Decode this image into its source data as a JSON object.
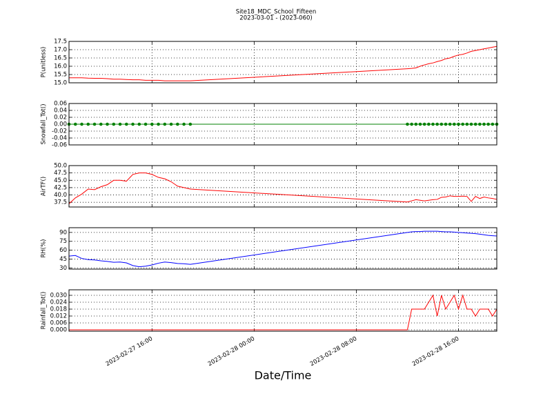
{
  "title": "Site18_MDC_School_Fifteen",
  "subtitle": "2023-03-01 - (2023-060)",
  "xlabel": "Date/Time",
  "chart_data": [
    {
      "type": "line",
      "ylabel": "P(unitless)",
      "color": "#ff0000",
      "grid": true,
      "x": [
        "2023-02-27 09:30",
        "2023-02-27 10:00",
        "2023-02-27 10:30",
        "2023-02-27 11:00",
        "2023-02-27 11:30",
        "2023-02-27 12:00",
        "2023-02-27 12:30",
        "2023-02-27 13:00",
        "2023-02-27 13:30",
        "2023-02-27 14:00",
        "2023-02-27 14:30",
        "2023-02-27 15:00",
        "2023-02-27 15:30",
        "2023-02-27 16:00",
        "2023-02-27 16:30",
        "2023-02-27 17:00",
        "2023-02-27 17:30",
        "2023-02-27 18:00",
        "2023-02-27 18:30",
        "2023-02-27 19:00",
        "2023-02-28 12:00",
        "2023-02-28 12:20",
        "2023-02-28 12:40",
        "2023-02-28 13:00",
        "2023-02-28 13:20",
        "2023-02-28 13:40",
        "2023-02-28 14:00",
        "2023-02-28 14:20",
        "2023-02-28 14:40",
        "2023-02-28 15:00",
        "2023-02-28 15:20",
        "2023-02-28 15:40",
        "2023-02-28 16:00",
        "2023-02-28 16:20",
        "2023-02-28 16:40",
        "2023-02-28 17:00",
        "2023-02-28 17:20",
        "2023-02-28 17:40",
        "2023-02-28 18:00",
        "2023-02-28 18:20",
        "2023-02-28 18:40",
        "2023-02-28 19:00"
      ],
      "values": [
        15.3,
        15.3,
        15.3,
        15.28,
        15.27,
        15.27,
        15.25,
        15.22,
        15.22,
        15.2,
        15.18,
        15.18,
        15.15,
        15.15,
        15.15,
        15.12,
        15.12,
        15.12,
        15.12,
        15.12,
        15.85,
        15.87,
        15.9,
        16.0,
        16.08,
        16.15,
        16.2,
        16.28,
        16.35,
        16.45,
        16.5,
        16.6,
        16.68,
        16.72,
        16.8,
        16.9,
        16.95,
        17.0,
        17.05,
        17.1,
        17.15,
        17.2
      ],
      "xlim": [
        "2023-02-27 09:30",
        "2023-02-28 19:00"
      ],
      "xticks": [
        "2023-02-27 16:00",
        "2023-02-28 00:00",
        "2023-02-28 08:00",
        "2023-02-28 16:00"
      ],
      "ylim": [
        15.0,
        17.5
      ],
      "yticks": [
        {
          "value": 15,
          "label": "15.0"
        },
        15.5,
        {
          "value": 16,
          "label": "16.0"
        },
        16.5,
        {
          "value": 17,
          "label": "17.0"
        },
        17.5
      ]
    },
    {
      "type": "line",
      "ylabel": "Snowfall_Tot()",
      "color": "#008000",
      "marker": true,
      "grid": true,
      "x": [
        "2023-02-27 09:30",
        "2023-02-27 10:00",
        "2023-02-27 10:30",
        "2023-02-27 11:00",
        "2023-02-27 11:30",
        "2023-02-27 12:00",
        "2023-02-27 12:30",
        "2023-02-27 13:00",
        "2023-02-27 13:30",
        "2023-02-27 14:00",
        "2023-02-27 14:30",
        "2023-02-27 15:00",
        "2023-02-27 15:30",
        "2023-02-27 16:00",
        "2023-02-27 16:30",
        "2023-02-27 17:00",
        "2023-02-27 17:30",
        "2023-02-27 18:00",
        "2023-02-27 18:30",
        "2023-02-27 19:00",
        "2023-02-28 12:00",
        "2023-02-28 12:20",
        "2023-02-28 12:40",
        "2023-02-28 13:00",
        "2023-02-28 13:20",
        "2023-02-28 13:40",
        "2023-02-28 14:00",
        "2023-02-28 14:20",
        "2023-02-28 14:40",
        "2023-02-28 15:00",
        "2023-02-28 15:20",
        "2023-02-28 15:40",
        "2023-02-28 16:00",
        "2023-02-28 16:20",
        "2023-02-28 16:40",
        "2023-02-28 17:00",
        "2023-02-28 17:20",
        "2023-02-28 17:40",
        "2023-02-28 18:00",
        "2023-02-28 18:20",
        "2023-02-28 18:40",
        "2023-02-28 19:00"
      ],
      "values": [
        0,
        0,
        0,
        0,
        0,
        0,
        0,
        0,
        0,
        0,
        0,
        0,
        0,
        0,
        0,
        0,
        0,
        0,
        0,
        0,
        0,
        0,
        0,
        0,
        0,
        0,
        0,
        0,
        0,
        0,
        0,
        0,
        0,
        0,
        0,
        0,
        0,
        0,
        0,
        0,
        0,
        0
      ],
      "xlim": [
        "2023-02-27 09:30",
        "2023-02-28 19:00"
      ],
      "xticks": [
        "2023-02-27 16:00",
        "2023-02-28 00:00",
        "2023-02-28 08:00",
        "2023-02-28 16:00"
      ],
      "ylim": [
        -0.06,
        0.06
      ],
      "yticks": [
        -0.06,
        -0.04,
        -0.02,
        {
          "value": 0,
          "label": "0.00"
        },
        0.02,
        0.04,
        0.06
      ]
    },
    {
      "type": "line",
      "ylabel": "AirTF()",
      "color": "#ff0000",
      "grid": true,
      "x": [
        "2023-02-27 09:30",
        "2023-02-27 10:00",
        "2023-02-27 10:30",
        "2023-02-27 11:00",
        "2023-02-27 11:30",
        "2023-02-27 12:00",
        "2023-02-27 12:30",
        "2023-02-27 13:00",
        "2023-02-27 13:30",
        "2023-02-27 14:00",
        "2023-02-27 14:30",
        "2023-02-27 15:00",
        "2023-02-27 15:30",
        "2023-02-27 16:00",
        "2023-02-27 16:30",
        "2023-02-27 17:00",
        "2023-02-27 17:30",
        "2023-02-27 18:00",
        "2023-02-27 18:30",
        "2023-02-27 19:00",
        "2023-02-28 12:00",
        "2023-02-28 12:20",
        "2023-02-28 12:40",
        "2023-02-28 13:00",
        "2023-02-28 13:20",
        "2023-02-28 13:40",
        "2023-02-28 14:00",
        "2023-02-28 14:20",
        "2023-02-28 14:40",
        "2023-02-28 15:00",
        "2023-02-28 15:20",
        "2023-02-28 15:40",
        "2023-02-28 16:00",
        "2023-02-28 16:20",
        "2023-02-28 16:40",
        "2023-02-28 17:00",
        "2023-02-28 17:20",
        "2023-02-28 17:40",
        "2023-02-28 18:00",
        "2023-02-28 18:20",
        "2023-02-28 18:40",
        "2023-02-28 19:00"
      ],
      "values": [
        37,
        39,
        40.3,
        42,
        41.8,
        42.8,
        43.5,
        45,
        45,
        44.7,
        47,
        47.5,
        47.5,
        47,
        46,
        45.5,
        44.5,
        43,
        42.5,
        42,
        37.6,
        38,
        38.4,
        38.2,
        38,
        38.2,
        38.4,
        38.5,
        39.2,
        39.3,
        39.7,
        39.5,
        39.5,
        39.6,
        39.5,
        37.8,
        39.5,
        38.8,
        39.3,
        39,
        38.8,
        38.5
      ],
      "xlim": [
        "2023-02-27 09:30",
        "2023-02-28 19:00"
      ],
      "xticks": [
        "2023-02-27 16:00",
        "2023-02-28 00:00",
        "2023-02-28 08:00",
        "2023-02-28 16:00"
      ],
      "ylim": [
        35.9,
        50
      ],
      "yticks": [
        37.5,
        {
          "value": 40,
          "label": "40.0"
        },
        42.5,
        {
          "value": 45,
          "label": "45.0"
        },
        47.5,
        {
          "value": 50,
          "label": "50.0"
        }
      ]
    },
    {
      "type": "line",
      "ylabel": "RH(%)",
      "color": "#0000ff",
      "grid": true,
      "x": [
        "2023-02-27 09:30",
        "2023-02-27 10:00",
        "2023-02-27 10:30",
        "2023-02-27 11:00",
        "2023-02-27 11:30",
        "2023-02-27 12:00",
        "2023-02-27 12:30",
        "2023-02-27 13:00",
        "2023-02-27 13:30",
        "2023-02-27 14:00",
        "2023-02-27 14:30",
        "2023-02-27 15:00",
        "2023-02-27 15:30",
        "2023-02-27 16:00",
        "2023-02-27 16:30",
        "2023-02-27 17:00",
        "2023-02-27 17:30",
        "2023-02-27 18:00",
        "2023-02-27 18:30",
        "2023-02-27 19:00",
        "2023-02-28 12:00",
        "2023-02-28 12:20",
        "2023-02-28 12:40",
        "2023-02-28 13:00",
        "2023-02-28 13:20",
        "2023-02-28 13:40",
        "2023-02-28 14:00",
        "2023-02-28 14:20",
        "2023-02-28 14:40",
        "2023-02-28 15:00",
        "2023-02-28 15:20",
        "2023-02-28 15:40",
        "2023-02-28 16:00",
        "2023-02-28 16:20",
        "2023-02-28 16:40",
        "2023-02-28 17:00",
        "2023-02-28 17:20",
        "2023-02-28 17:40",
        "2023-02-28 18:00",
        "2023-02-28 18:20",
        "2023-02-28 18:40",
        "2023-02-28 19:00"
      ],
      "values": [
        50,
        51,
        46,
        44,
        43.5,
        42,
        41,
        39.5,
        40,
        38.5,
        34,
        32,
        33,
        35,
        38,
        40,
        39,
        37.5,
        37,
        36,
        90,
        91,
        91.5,
        91.5,
        92,
        92,
        92,
        92,
        91.5,
        91,
        91,
        90.5,
        90,
        89.5,
        89,
        88.5,
        88,
        87,
        86,
        85,
        84.5,
        84
      ],
      "xlim": [
        "2023-02-27 09:30",
        "2023-02-28 19:00"
      ],
      "xticks": [
        "2023-02-27 16:00",
        "2023-02-28 00:00",
        "2023-02-28 08:00",
        "2023-02-28 16:00"
      ],
      "ylim": [
        28,
        98
      ],
      "yticks": [
        30,
        45,
        60,
        75,
        90
      ]
    },
    {
      "type": "line",
      "ylabel": "Rainfall_Tot()",
      "color": "#ff0000",
      "grid": true,
      "x": [
        "2023-02-27 09:30",
        "2023-02-27 10:00",
        "2023-02-27 10:30",
        "2023-02-27 11:00",
        "2023-02-27 11:30",
        "2023-02-27 12:00",
        "2023-02-27 12:30",
        "2023-02-27 13:00",
        "2023-02-27 13:30",
        "2023-02-27 14:00",
        "2023-02-27 14:30",
        "2023-02-27 15:00",
        "2023-02-27 15:30",
        "2023-02-27 16:00",
        "2023-02-27 16:30",
        "2023-02-27 17:00",
        "2023-02-27 17:30",
        "2023-02-27 18:00",
        "2023-02-27 18:30",
        "2023-02-27 19:00",
        "2023-02-28 12:00",
        "2023-02-28 12:20",
        "2023-02-28 12:40",
        "2023-02-28 13:00",
        "2023-02-28 13:20",
        "2023-02-28 13:40",
        "2023-02-28 14:00",
        "2023-02-28 14:20",
        "2023-02-28 14:40",
        "2023-02-28 15:00",
        "2023-02-28 15:20",
        "2023-02-28 15:40",
        "2023-02-28 16:00",
        "2023-02-28 16:20",
        "2023-02-28 16:40",
        "2023-02-28 17:00",
        "2023-02-28 17:20",
        "2023-02-28 17:40",
        "2023-02-28 18:00",
        "2023-02-28 18:20",
        "2023-02-28 18:40",
        "2023-02-28 19:00"
      ],
      "values": [
        0,
        0,
        0,
        0,
        0,
        0,
        0,
        0,
        0,
        0,
        0,
        0,
        0,
        0,
        0,
        0,
        0,
        0,
        0,
        0,
        0,
        0.018,
        0.018,
        0.018,
        0.018,
        0.024,
        0.03,
        0.012,
        0.03,
        0.018,
        0.024,
        0.03,
        0.018,
        0.03,
        0.018,
        0.018,
        0.012,
        0.018,
        0.018,
        0.018,
        0.012,
        0.018
      ],
      "xlim": [
        "2023-02-27 09:30",
        "2023-02-28 19:00"
      ],
      "xticks": [
        "2023-02-27 16:00",
        "2023-02-28 00:00",
        "2023-02-28 08:00",
        "2023-02-28 16:00"
      ],
      "ylim": [
        -0.0012,
        0.0348
      ],
      "yticks": [
        {
          "value": 0,
          "label": "0.000"
        },
        0.006,
        0.012,
        0.018,
        0.024,
        {
          "value": 0.03,
          "label": "0.030"
        }
      ]
    }
  ]
}
